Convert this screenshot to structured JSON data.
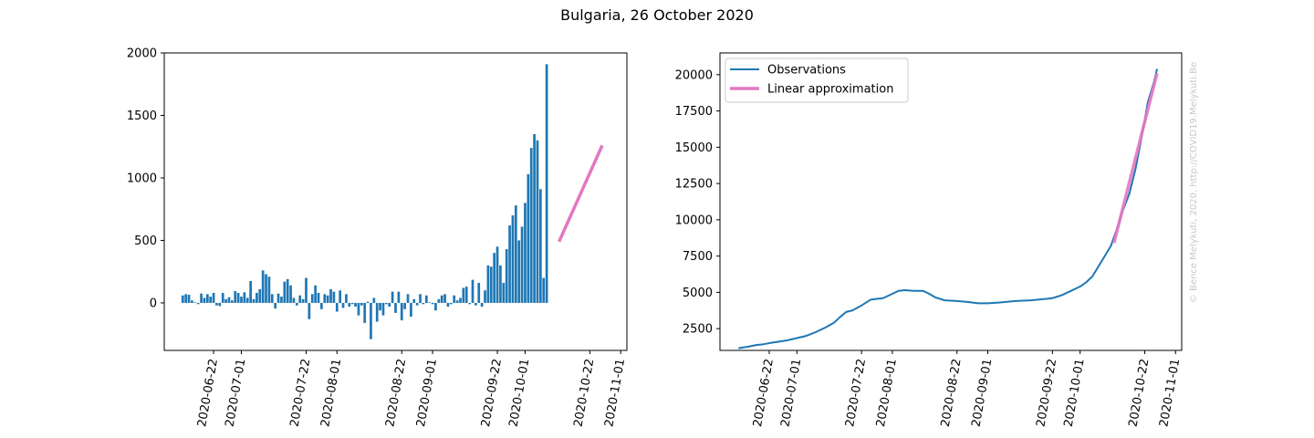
{
  "figure": {
    "title": "Bulgaria, 26 October 2020",
    "watermark": "© Bence Melykuti, 2020. http://COVID19.Melykuti.Be"
  },
  "chart_data": [
    {
      "type": "bar",
      "title": "",
      "xlabel": "",
      "ylabel": "",
      "x_type": "date",
      "x_range": [
        "2020-06-06",
        "2020-11-03"
      ],
      "ylim": [
        -380,
        2000
      ],
      "yticks": [
        0,
        500,
        1000,
        1500,
        2000
      ],
      "xticks": [
        "2020-06-22",
        "2020-07-01",
        "2020-07-22",
        "2020-08-01",
        "2020-08-22",
        "2020-09-01",
        "2020-09-22",
        "2020-10-01",
        "2020-10-22",
        "2020-11-01"
      ],
      "grid": false,
      "bar_color": "#1f77b4",
      "series": [
        {
          "x_start": "2020-06-12",
          "values": [
            60,
            70,
            65,
            20,
            5,
            -10,
            75,
            40,
            70,
            50,
            80,
            -20,
            -25,
            80,
            30,
            45,
            20,
            95,
            80,
            50,
            85,
            40,
            175,
            30,
            80,
            110,
            260,
            230,
            210,
            70,
            -45,
            75,
            50,
            170,
            190,
            140,
            40,
            -20,
            60,
            30,
            200,
            -130,
            70,
            140,
            80,
            -50,
            70,
            60,
            110,
            90,
            -70,
            100,
            -40,
            70,
            -30,
            -10,
            -30,
            -100,
            -20,
            -160,
            10,
            -290,
            40,
            -150,
            -60,
            -100,
            -10,
            -30,
            90,
            -80,
            90,
            -140,
            -50,
            70,
            -110,
            30,
            -20,
            70,
            -10,
            60,
            5,
            -10,
            -60,
            30,
            60,
            70,
            -30,
            -10,
            60,
            20,
            40,
            120,
            130,
            -10,
            185,
            -20,
            160,
            -30,
            100,
            300,
            290,
            400,
            450,
            300,
            160,
            430,
            620,
            700,
            780,
            500,
            610,
            800,
            1030,
            1240,
            1350,
            1300,
            910,
            200,
            1910
          ]
        },
        {
          "name": "",
          "type": "line",
          "color": "#e377c2",
          "points": [
            [
              "2020-10-12",
              490
            ],
            [
              "2020-10-26",
              1260
            ]
          ]
        }
      ]
    },
    {
      "type": "line",
      "title": "",
      "xlabel": "",
      "ylabel": "",
      "x_type": "date",
      "x_range": [
        "2020-06-06",
        "2020-11-03"
      ],
      "ylim": [
        1000,
        21500
      ],
      "yticks": [
        2500,
        5000,
        7500,
        10000,
        12500,
        15000,
        17500,
        20000
      ],
      "xticks": [
        "2020-06-22",
        "2020-07-01",
        "2020-07-22",
        "2020-08-01",
        "2020-08-22",
        "2020-09-01",
        "2020-09-22",
        "2020-10-01",
        "2020-10-22",
        "2020-11-01"
      ],
      "grid": false,
      "legend_position": "top-left",
      "series": [
        {
          "name": "Observations",
          "color": "#1f77b4",
          "points": [
            [
              "2020-06-12",
              1150
            ],
            [
              "2020-06-15",
              1250
            ],
            [
              "2020-06-18",
              1380
            ],
            [
              "2020-06-20",
              1420
            ],
            [
              "2020-06-22",
              1500
            ],
            [
              "2020-06-25",
              1600
            ],
            [
              "2020-06-28",
              1700
            ],
            [
              "2020-07-01",
              1850
            ],
            [
              "2020-07-04",
              2000
            ],
            [
              "2020-07-07",
              2250
            ],
            [
              "2020-07-10",
              2550
            ],
            [
              "2020-07-13",
              2900
            ],
            [
              "2020-07-15",
              3300
            ],
            [
              "2020-07-17",
              3650
            ],
            [
              "2020-07-19",
              3750
            ],
            [
              "2020-07-22",
              4100
            ],
            [
              "2020-07-25",
              4500
            ],
            [
              "2020-07-27",
              4550
            ],
            [
              "2020-07-29",
              4600
            ],
            [
              "2020-08-01",
              4900
            ],
            [
              "2020-08-03",
              5100
            ],
            [
              "2020-08-05",
              5150
            ],
            [
              "2020-08-08",
              5100
            ],
            [
              "2020-08-11",
              5100
            ],
            [
              "2020-08-13",
              4900
            ],
            [
              "2020-08-15",
              4650
            ],
            [
              "2020-08-18",
              4450
            ],
            [
              "2020-08-22",
              4400
            ],
            [
              "2020-08-25",
              4350
            ],
            [
              "2020-08-29",
              4250
            ],
            [
              "2020-09-01",
              4250
            ],
            [
              "2020-09-05",
              4300
            ],
            [
              "2020-09-10",
              4400
            ],
            [
              "2020-09-15",
              4450
            ],
            [
              "2020-09-20",
              4550
            ],
            [
              "2020-09-22",
              4600
            ],
            [
              "2020-09-25",
              4800
            ],
            [
              "2020-09-28",
              5100
            ],
            [
              "2020-10-01",
              5400
            ],
            [
              "2020-10-03",
              5700
            ],
            [
              "2020-10-05",
              6100
            ],
            [
              "2020-10-07",
              6800
            ],
            [
              "2020-10-09",
              7500
            ],
            [
              "2020-10-11",
              8200
            ],
            [
              "2020-10-13",
              9400
            ],
            [
              "2020-10-15",
              10700
            ],
            [
              "2020-10-17",
              11800
            ],
            [
              "2020-10-19",
              13500
            ],
            [
              "2020-10-21",
              15700
            ],
            [
              "2020-10-23",
              18100
            ],
            [
              "2020-10-25",
              19500
            ],
            [
              "2020-10-26",
              20400
            ]
          ]
        },
        {
          "name": "Linear approximation",
          "color": "#e377c2",
          "points": [
            [
              "2020-10-12",
              8400
            ],
            [
              "2020-10-26",
              20100
            ]
          ]
        }
      ]
    }
  ]
}
